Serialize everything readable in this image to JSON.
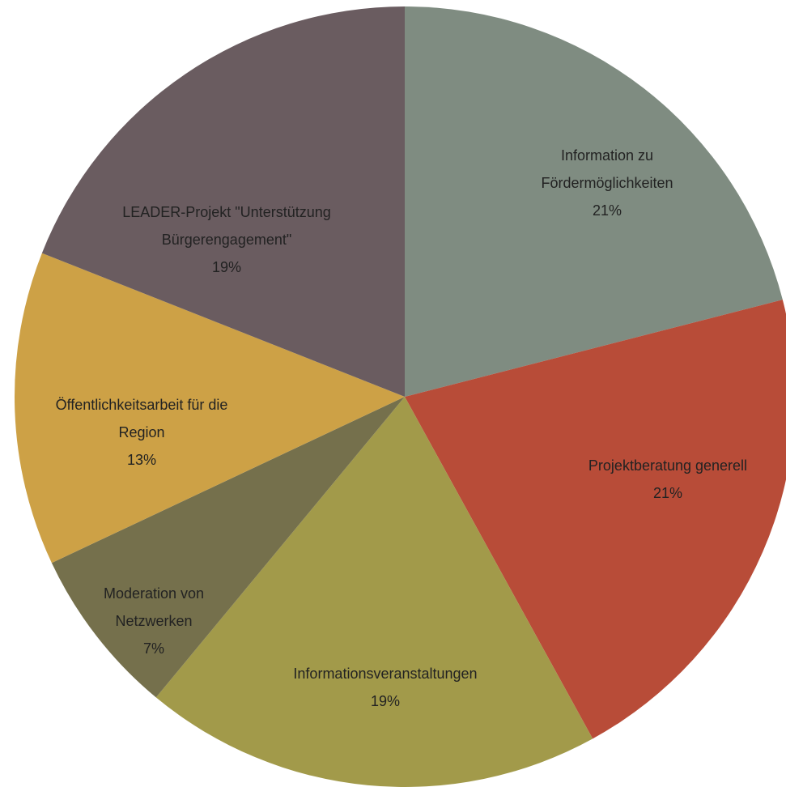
{
  "chart_data": {
    "type": "pie",
    "categories": [
      "Information zu Fördermöglichkeiten",
      "Projektberatung generell",
      "Informationsveranstaltungen",
      "Moderation von Netzwerken",
      "Öffentlichkeitsarbeit für die Region",
      "LEADER-Projekt \"Unterstützung Bürgerengagement\""
    ],
    "values": [
      21,
      21,
      19,
      7,
      13,
      19
    ],
    "value_labels": [
      "21%",
      "21%",
      "19%",
      "7%",
      "13%",
      "19%"
    ],
    "colors": [
      "#7f8c81",
      "#b84c38",
      "#a29a4a",
      "#75704c",
      "#cda146",
      "#6a5c60"
    ]
  }
}
